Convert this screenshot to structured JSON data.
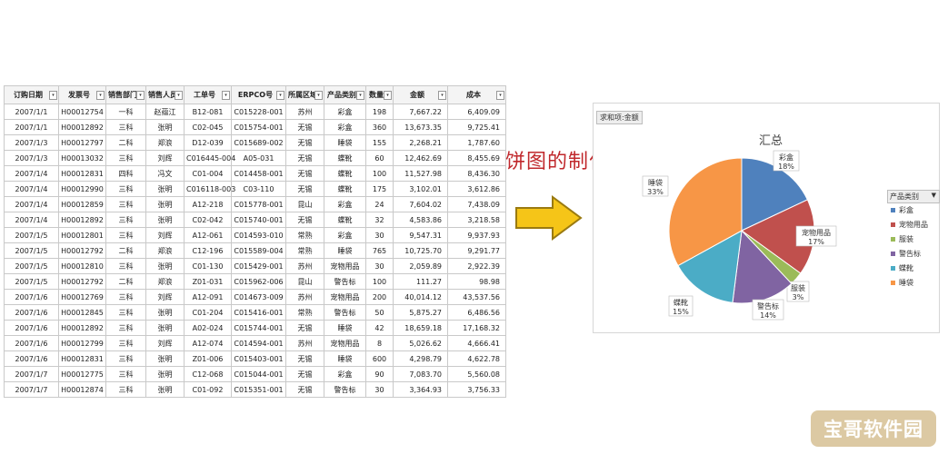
{
  "sheet": {
    "headers": [
      "订购日期",
      "发票号",
      "销售部门",
      "销售人员",
      "工单号",
      "ERPCO号",
      "所属区域",
      "产品类别",
      "数量",
      "金额",
      "成本"
    ],
    "rows": [
      [
        "2007/1/1",
        "H00012754",
        "一科",
        "赵蕴江",
        "B12-081",
        "C015228-001",
        "苏州",
        "彩盒",
        "198",
        "7,667.22",
        "6,409.09"
      ],
      [
        "2007/1/1",
        "H00012892",
        "三科",
        "张明",
        "C02-045",
        "C015754-001",
        "无锡",
        "彩盒",
        "360",
        "13,673.35",
        "9,725.41"
      ],
      [
        "2007/1/3",
        "H00012797",
        "二科",
        "郑浪",
        "D12-039",
        "C015689-002",
        "无锡",
        "睡袋",
        "155",
        "2,268.21",
        "1,787.60"
      ],
      [
        "2007/1/3",
        "H00013032",
        "三科",
        "刘辉",
        "C016445-004",
        "A05-031",
        "无锡",
        "蝶靴",
        "60",
        "12,462.69",
        "8,455.69"
      ],
      [
        "2007/1/4",
        "H00012831",
        "四科",
        "冯文",
        "C01-004",
        "C014458-001",
        "无锡",
        "蝶靴",
        "100",
        "11,527.98",
        "8,436.30"
      ],
      [
        "2007/1/4",
        "H00012990",
        "三科",
        "张明",
        "C016118-003",
        "C03-110",
        "无锡",
        "蝶靴",
        "175",
        "3,102.01",
        "3,612.86"
      ],
      [
        "2007/1/4",
        "H00012859",
        "三科",
        "张明",
        "A12-218",
        "C015778-001",
        "昆山",
        "彩盒",
        "24",
        "7,604.02",
        "7,438.09"
      ],
      [
        "2007/1/4",
        "H00012892",
        "三科",
        "张明",
        "C02-042",
        "C015740-001",
        "无锡",
        "蝶靴",
        "32",
        "4,583.86",
        "3,218.58"
      ],
      [
        "2007/1/5",
        "H00012801",
        "三科",
        "刘辉",
        "A12-061",
        "C014593-010",
        "常熟",
        "彩盒",
        "30",
        "9,547.31",
        "9,937.93"
      ],
      [
        "2007/1/5",
        "H00012792",
        "二科",
        "郑浪",
        "C12-196",
        "C015589-004",
        "常熟",
        "睡袋",
        "765",
        "10,725.70",
        "9,291.77"
      ],
      [
        "2007/1/5",
        "H00012810",
        "三科",
        "张明",
        "C01-130",
        "C015429-001",
        "苏州",
        "宠物用品",
        "30",
        "2,059.89",
        "2,922.39"
      ],
      [
        "2007/1/5",
        "H00012792",
        "二科",
        "郑浪",
        "Z01-031",
        "C015962-006",
        "昆山",
        "警告标",
        "100",
        "111.27",
        "98.98"
      ],
      [
        "2007/1/6",
        "H00012769",
        "三科",
        "刘辉",
        "A12-091",
        "C014673-009",
        "苏州",
        "宠物用品",
        "200",
        "40,014.12",
        "43,537.56"
      ],
      [
        "2007/1/6",
        "H00012845",
        "三科",
        "张明",
        "C01-204",
        "C015416-001",
        "常熟",
        "警告标",
        "50",
        "5,875.27",
        "6,486.56"
      ],
      [
        "2007/1/6",
        "H00012892",
        "三科",
        "张明",
        "A02-024",
        "C015744-001",
        "无锡",
        "睡袋",
        "42",
        "18,659.18",
        "17,168.32"
      ],
      [
        "2007/1/6",
        "H00012799",
        "三科",
        "刘辉",
        "A12-074",
        "C014594-001",
        "苏州",
        "宠物用品",
        "8",
        "5,026.62",
        "4,666.41"
      ],
      [
        "2007/1/6",
        "H00012831",
        "三科",
        "张明",
        "Z01-006",
        "C015403-001",
        "无锡",
        "睡袋",
        "600",
        "4,298.79",
        "4,622.78"
      ],
      [
        "2007/1/7",
        "H00012775",
        "三科",
        "张明",
        "C12-068",
        "C015044-001",
        "无锡",
        "彩盒",
        "90",
        "7,083.70",
        "5,560.08"
      ],
      [
        "2007/1/7",
        "H00012874",
        "三科",
        "张明",
        "C01-092",
        "C015351-001",
        "无锡",
        "警告标",
        "30",
        "3,364.93",
        "3,756.33"
      ]
    ]
  },
  "caption": "饼图的制作",
  "pivot_field_label": "求和项:金额",
  "legend_title": "产品类别",
  "watermark": "宝哥软件园",
  "colors": {
    "arrow_fill": "#f5c518",
    "arrow_stroke": "#9a7a10",
    "caption": "#c0282c"
  },
  "chart_data": {
    "type": "pie",
    "title": "汇总",
    "slices": [
      {
        "label": "彩盒",
        "value": 18,
        "percent": "18%",
        "color": "#4f81bd"
      },
      {
        "label": "宠物用品",
        "value": 17,
        "percent": "17%",
        "color": "#c0504d"
      },
      {
        "label": "服装",
        "value": 3,
        "percent": "3%",
        "color": "#9bbb59"
      },
      {
        "label": "警告标",
        "value": 14,
        "percent": "14%",
        "color": "#8064a2"
      },
      {
        "label": "蝶靴",
        "value": 15,
        "percent": "15%",
        "color": "#4bacc6"
      },
      {
        "label": "睡袋",
        "value": 33,
        "percent": "33%",
        "color": "#f79646"
      }
    ],
    "legend": [
      "彩盒",
      "宠物用品",
      "服装",
      "警告标",
      "蝶靴",
      "睡袋"
    ],
    "legend_position": "right"
  }
}
